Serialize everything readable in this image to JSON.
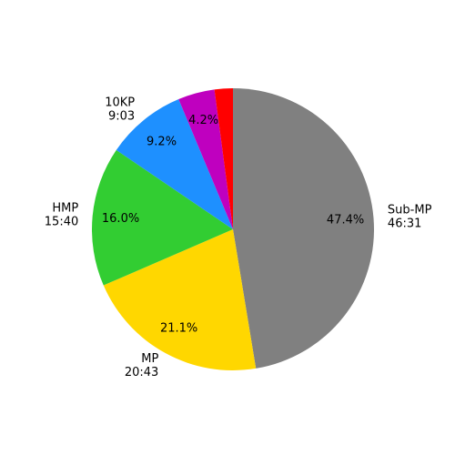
{
  "chart_data": {
    "type": "pie",
    "categories": [
      "Sub-MP",
      "MP",
      "HMP",
      "10KP",
      null,
      null
    ],
    "durations": [
      "46:31",
      "20:43",
      "15:40",
      "9:03",
      null,
      null
    ],
    "values": [
      47.4,
      21.1,
      16.0,
      9.2,
      4.2,
      2.1
    ],
    "value_labels": [
      "47.4%",
      "21.1%",
      "16.0%",
      "9.2%",
      "4.2%",
      null
    ],
    "colors": [
      "#808080",
      "#ffd700",
      "#32cd32",
      "#1e90ff",
      "#bf00bf",
      "#ff0000"
    ]
  }
}
